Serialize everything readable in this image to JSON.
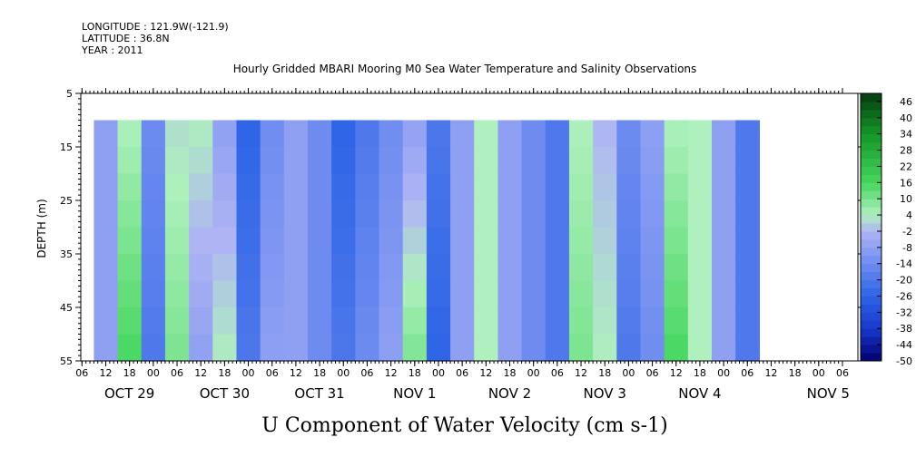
{
  "header": {
    "longitude": "LONGITUDE : 121.9W(-121.9)",
    "latitude": "LATITUDE : 36.8N",
    "year": "YEAR : 2011"
  },
  "chart_data": {
    "type": "heatmap",
    "title": "Hourly Gridded MBARI Mooring M0 Sea Water Temperature and Salinity Observations",
    "xlabel": "U Component of Water Velocity (cm s-1)",
    "ylabel": "DEPTH (m)",
    "ylim": [
      55,
      5
    ],
    "y_ticks": [
      5,
      15,
      25,
      35,
      45,
      55
    ],
    "x_hour_ticks": [
      "06",
      "12",
      "18",
      "00",
      "06",
      "12",
      "18",
      "00",
      "06",
      "12",
      "18",
      "00",
      "06",
      "12",
      "18",
      "00",
      "06",
      "12",
      "18",
      "00",
      "06",
      "12",
      "18",
      "00",
      "06",
      "12",
      "18",
      "00",
      "06",
      "12",
      "18",
      "00",
      "06"
    ],
    "x_day_labels": [
      "OCT 29",
      "OCT 30",
      "OCT 31",
      "NOV  1",
      "NOV  2",
      "NOV  3",
      "NOV  4",
      "NOV  5"
    ],
    "data_depth_range": [
      10,
      55
    ],
    "colorbar": {
      "ticks": [
        46,
        40,
        34,
        28,
        22,
        16,
        10,
        4,
        -2,
        -8,
        -14,
        -20,
        -26,
        -32,
        -38,
        -44,
        -50
      ],
      "range": [
        -50,
        49
      ]
    },
    "columns": [
      {
        "day": "OCT 29",
        "hour": "12",
        "u_top": -8,
        "u_bottom": -8
      },
      {
        "day": "OCT 29",
        "hour": "18",
        "u_top": 4,
        "u_bottom": 16
      },
      {
        "day": "OCT 30",
        "hour": "00",
        "u_top": -14,
        "u_bottom": -20
      },
      {
        "day": "OCT 30",
        "hour": "06",
        "u_top": 2,
        "u_bottom": 10
      },
      {
        "day": "OCT 30",
        "hour": "12",
        "u_top": 4,
        "u_bottom": -8
      },
      {
        "day": "OCT 30",
        "hour": "18",
        "u_top": -8,
        "u_bottom": 4
      },
      {
        "day": "OCT 31",
        "hour": "00",
        "u_top": -26,
        "u_bottom": -20
      },
      {
        "day": "OCT 31",
        "hour": "06",
        "u_top": -14,
        "u_bottom": -8
      },
      {
        "day": "OCT 31",
        "hour": "12",
        "u_top": -8,
        "u_bottom": -8
      },
      {
        "day": "OCT 31",
        "hour": "18",
        "u_top": -14,
        "u_bottom": -14
      },
      {
        "day": "NOV 1",
        "hour": "00",
        "u_top": -26,
        "u_bottom": -20
      },
      {
        "day": "NOV 1",
        "hour": "06",
        "u_top": -20,
        "u_bottom": -14
      },
      {
        "day": "NOV 1",
        "hour": "12",
        "u_top": -14,
        "u_bottom": -8
      },
      {
        "day": "NOV 1",
        "hour": "18",
        "u_top": -8,
        "u_bottom": 10
      },
      {
        "day": "NOV 2",
        "hour": "00",
        "u_top": -20,
        "u_bottom": -26
      },
      {
        "day": "NOV 2",
        "hour": "06",
        "u_top": -8,
        "u_bottom": -8
      },
      {
        "day": "NOV 2",
        "hour": "12",
        "u_top": 4,
        "u_bottom": 4
      },
      {
        "day": "NOV 2",
        "hour": "18",
        "u_top": -8,
        "u_bottom": -8
      },
      {
        "day": "NOV 3",
        "hour": "00",
        "u_top": -14,
        "u_bottom": -14
      },
      {
        "day": "NOV 3",
        "hour": "06",
        "u_top": -20,
        "u_bottom": -20
      },
      {
        "day": "NOV 3",
        "hour": "12",
        "u_top": 4,
        "u_bottom": 10
      },
      {
        "day": "NOV 3",
        "hour": "18",
        "u_top": -2,
        "u_bottom": 4
      },
      {
        "day": "NOV 4",
        "hour": "00",
        "u_top": -14,
        "u_bottom": -20
      },
      {
        "day": "NOV 4",
        "hour": "06",
        "u_top": -8,
        "u_bottom": -14
      },
      {
        "day": "NOV 4",
        "hour": "12",
        "u_top": 4,
        "u_bottom": 16
      },
      {
        "day": "NOV 4",
        "hour": "18",
        "u_top": 4,
        "u_bottom": 4
      },
      {
        "day": "NOV 5",
        "hour": "00",
        "u_top": -8,
        "u_bottom": -8
      },
      {
        "day": "NOV 5",
        "hour": "06",
        "u_top": -20,
        "u_bottom": -20
      }
    ]
  }
}
